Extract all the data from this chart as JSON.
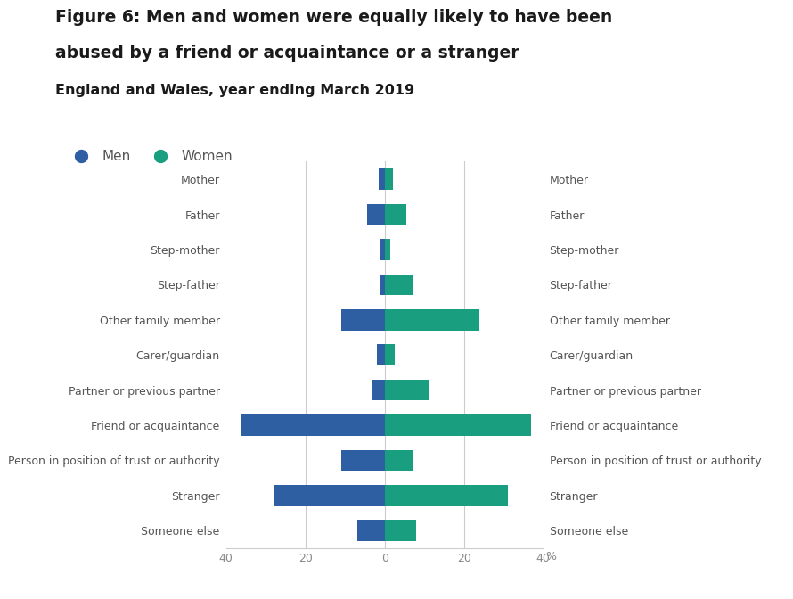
{
  "title_line1": "Figure 6: Men and women were equally likely to have been",
  "title_line2": "abused by a friend or acquaintance or a stranger",
  "subtitle": "England and Wales, year ending March 2019",
  "categories": [
    "Mother",
    "Father",
    "Step-mother",
    "Step-father",
    "Other family member",
    "Carer/guardian",
    "Partner or previous partner",
    "Friend or acquaintance",
    "Person in position of trust or authority",
    "Stranger",
    "Someone else"
  ],
  "men_values": [
    1.5,
    4.5,
    1.0,
    1.0,
    11.0,
    2.0,
    3.0,
    36.0,
    11.0,
    28.0,
    7.0
  ],
  "women_values": [
    2.0,
    5.5,
    1.5,
    7.0,
    24.0,
    2.5,
    11.0,
    37.0,
    7.0,
    31.0,
    8.0
  ],
  "men_color": "#2E5FA3",
  "women_color": "#1A9E80",
  "background_color": "#FFFFFF",
  "grid_color": "#CCCCCC",
  "axis_text_color": "#888888",
  "label_text_color": "#555555",
  "title_color": "#1a1a1a",
  "xlim": 40,
  "xlabel": "%",
  "legend_men": "Men",
  "legend_women": "Women",
  "xticks": [
    -40,
    -20,
    0,
    20,
    40
  ]
}
